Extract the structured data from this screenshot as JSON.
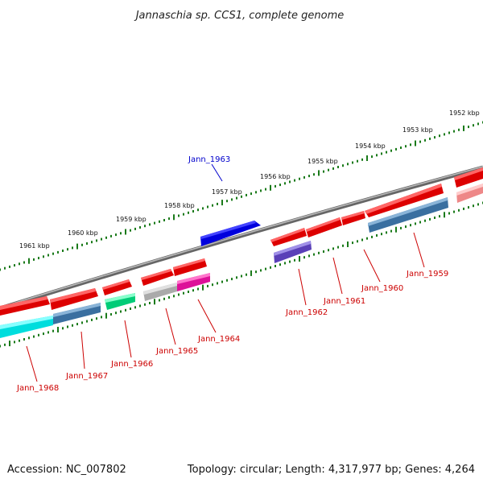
{
  "title": "Jannaschia sp. CCS1, complete genome",
  "accession": "Accession: NC_007802",
  "summary": "Topology: circular; Length: 4,317,977 bp; Genes: 4,264",
  "colors": {
    "backbone": "#888888",
    "tick": "#1a7a1a",
    "gene_label": "#cc0000",
    "highlight_label": "#0000cc",
    "forward_gene": "#ff0000",
    "reverse_gene": "#4a7fb0"
  },
  "scale": {
    "unit": "kbp",
    "labels": [
      "1961 kbp",
      "1960 kbp",
      "1959 kbp",
      "1958 kbp",
      "1957 kbp",
      "1956 kbp",
      "1955 kbp",
      "1954 kbp",
      "1953 kbp",
      "1952 kbp"
    ]
  },
  "highlighted_gene": {
    "label": "Jann_1963",
    "color": "#0000dd"
  },
  "genes": [
    {
      "label": "Jann_1968",
      "strand": "reverse",
      "color": "#00e0e0"
    },
    {
      "label": "Jann_1967",
      "strand": "reverse",
      "color": "#4a7fb0"
    },
    {
      "label": "Jann_1966",
      "strand": "reverse",
      "color": "#00dd88"
    },
    {
      "label": "Jann_1965",
      "strand": "reverse",
      "color": "#b8b8b8"
    },
    {
      "label": "Jann_1964",
      "strand": "reverse",
      "color": "#ee1199"
    },
    {
      "label": "Jann_1962",
      "strand": "reverse",
      "color": "#6a50c8"
    },
    {
      "label": "Jann_1961",
      "strand": "forward",
      "color": "#ff0000"
    },
    {
      "label": "Jann_1960",
      "strand": "forward",
      "color": "#ff0000"
    },
    {
      "label": "Jann_1959",
      "strand": "reverse",
      "color": "#4a7fb0"
    }
  ]
}
